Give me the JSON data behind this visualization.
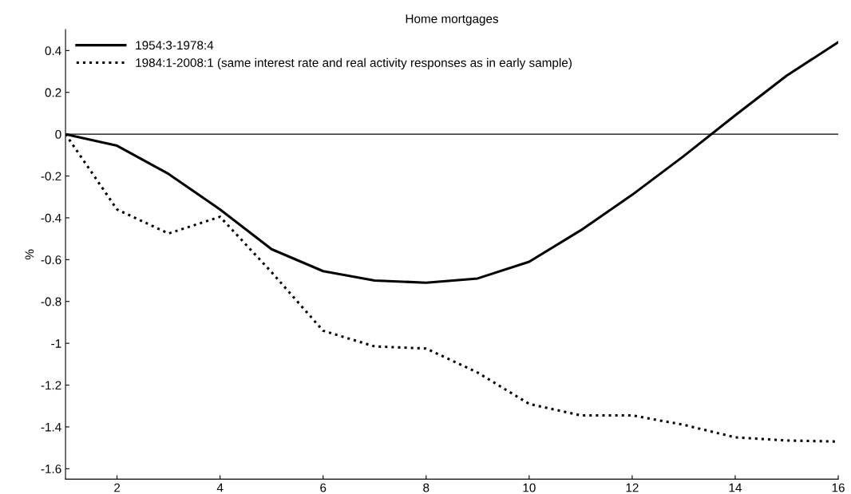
{
  "chart_data": {
    "type": "line",
    "title": "Home mortgages",
    "ylabel": "%",
    "x": [
      1,
      2,
      3,
      4,
      5,
      6,
      7,
      8,
      9,
      10,
      11,
      12,
      13,
      14,
      15,
      16
    ],
    "series": [
      {
        "name": "1954:3-1978:4",
        "color": "#000000",
        "line_style": "solid",
        "values": [
          0,
          -0.055,
          -0.19,
          -0.36,
          -0.55,
          -0.655,
          -0.7,
          -0.71,
          -0.69,
          -0.61,
          -0.46,
          -0.29,
          -0.105,
          0.09,
          0.28,
          0.44
        ]
      },
      {
        "name": "1984:1-2008:1 (same interest rate and real activity responses as in early sample)",
        "color": "#000000",
        "line_style": "dotted",
        "values": [
          0,
          -0.36,
          -0.475,
          -0.395,
          -0.66,
          -0.94,
          -1.015,
          -1.025,
          -1.14,
          -1.29,
          -1.345,
          -1.345,
          -1.39,
          -1.45,
          -1.465,
          -1.47
        ]
      }
    ],
    "xlim": [
      1,
      16
    ],
    "xticks": [
      2,
      4,
      6,
      8,
      10,
      12,
      14,
      16
    ],
    "ylim": [
      -1.65,
      0.5
    ],
    "yticks": [
      -1.6,
      -1.4,
      -1.2,
      -1,
      -0.8,
      -0.6,
      -0.4,
      -0.2,
      0,
      0.2,
      0.4
    ],
    "ref_lines": [
      {
        "axis": "y",
        "value": 0,
        "color": "#000000",
        "line_style": "solid"
      }
    ],
    "grid": false,
    "legend": "top left"
  }
}
